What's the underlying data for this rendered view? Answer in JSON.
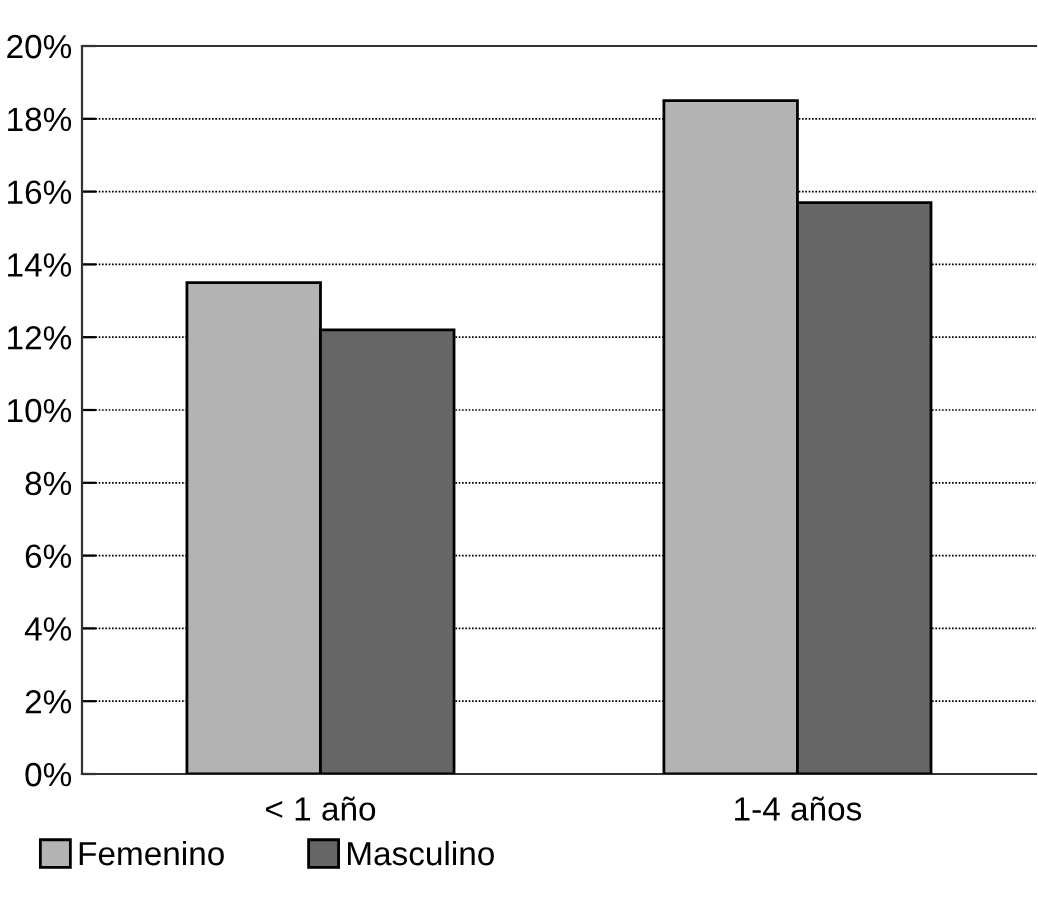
{
  "chart_data": {
    "type": "bar",
    "categories": [
      "< 1 año",
      "1-4 años"
    ],
    "series": [
      {
        "name": "Femenino",
        "color": "#b3b3b3",
        "values": [
          13.5,
          18.5
        ]
      },
      {
        "name": "Masculino",
        "color": "#666666",
        "values": [
          12.2,
          15.7
        ]
      }
    ],
    "ylim": [
      0,
      20
    ],
    "yticks": [
      {
        "value": 0,
        "label": "0%"
      },
      {
        "value": 2,
        "label": "2%"
      },
      {
        "value": 4,
        "label": "4%"
      },
      {
        "value": 6,
        "label": "6%"
      },
      {
        "value": 8,
        "label": "8%"
      },
      {
        "value": 10,
        "label": "10%"
      },
      {
        "value": 12,
        "label": "12%"
      },
      {
        "value": 14,
        "label": "14%"
      },
      {
        "value": 16,
        "label": "16%"
      },
      {
        "value": 18,
        "label": "18%"
      },
      {
        "value": 20,
        "label": "20%"
      }
    ],
    "grid": "y",
    "legend": "bottom left"
  }
}
